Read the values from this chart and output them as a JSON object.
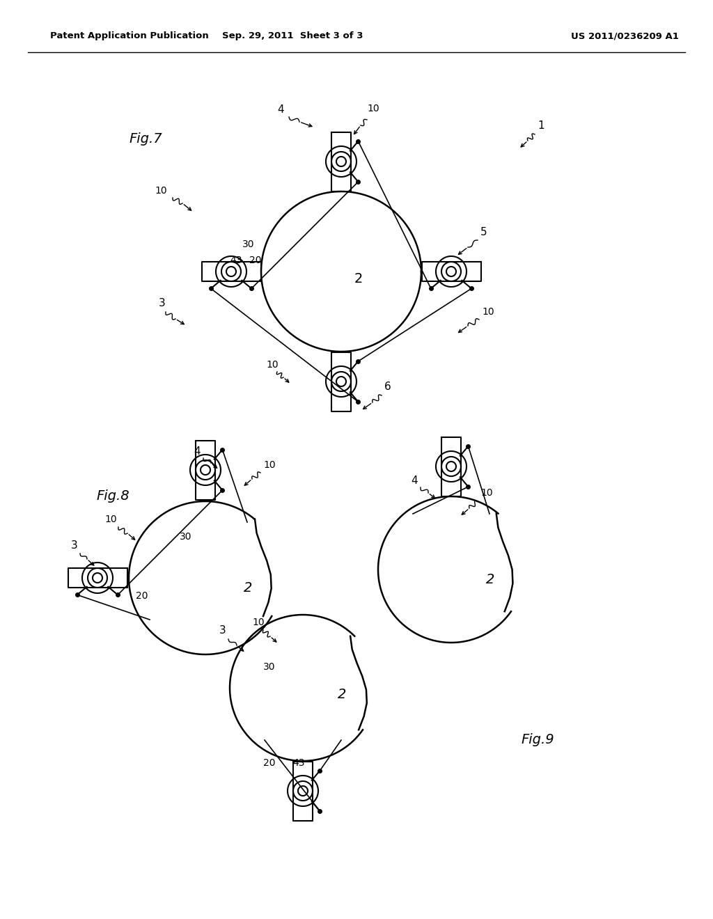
{
  "title_left": "Patent Application Publication",
  "title_center": "Sep. 29, 2011  Sheet 3 of 3",
  "title_right": "US 2011/0236209 A1",
  "background_color": "#ffffff",
  "line_color": "#000000",
  "fig7_label": "Fig.7",
  "fig8_label": "Fig.8",
  "fig9_label": "Fig.9"
}
